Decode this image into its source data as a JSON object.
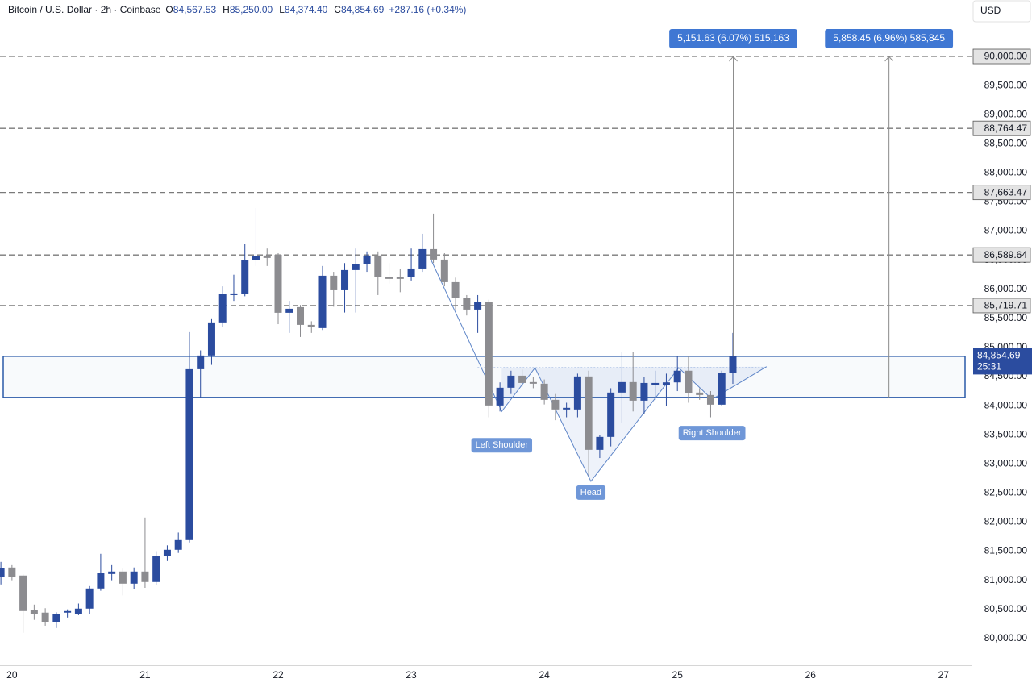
{
  "chart_data": {
    "type": "candlestick",
    "title": "Bitcoin / U.S. Dollar · 2h · Coinbase",
    "legend_ohlc": [
      {
        "key": "O",
        "label": "84,567.53"
      },
      {
        "key": "H",
        "label": "85,250.00"
      },
      {
        "key": "L",
        "label": "84,374.40"
      },
      {
        "key": "C",
        "label": "84,854.69"
      }
    ],
    "change": "+287.16 (+0.34%)",
    "currency": "USD",
    "up_color": "#2b4c9f",
    "down_color": "#8c8c90",
    "x": [
      19.9167,
      20,
      20.0833,
      20.1667,
      20.25,
      20.3333,
      20.4167,
      20.5,
      20.5833,
      20.6667,
      20.75,
      20.8333,
      20.9167,
      21,
      21.0833,
      21.1667,
      21.25,
      21.3333,
      21.4167,
      21.5,
      21.5833,
      21.6667,
      21.75,
      21.8333,
      21.9167,
      22,
      22.0833,
      22.1667,
      22.25,
      22.3333,
      22.4167,
      22.5,
      22.5833,
      22.6667,
      22.75,
      22.8333,
      22.9167,
      23,
      23.0833,
      23.1667,
      23.25,
      23.3333,
      23.4167,
      23.5,
      23.5833,
      23.6667,
      23.75,
      23.8333,
      23.9167,
      24,
      24.0833,
      24.1667,
      24.25,
      24.3333,
      24.4167,
      24.5,
      24.5833,
      24.6667,
      24.75,
      24.8333,
      24.9167,
      25,
      25.0833,
      25.1667,
      25.25,
      25.3333,
      25.4167
    ],
    "open": [
      81053,
      81219,
      81081,
      80485,
      80444,
      80277,
      80444,
      80416,
      80513,
      80859,
      81108,
      81150,
      80942,
      81150,
      80970,
      81413,
      81524,
      81690,
      84626,
      84862,
      85430,
      85900,
      85914,
      86496,
      86580,
      86593,
      85596,
      85693,
      85388,
      85333,
      86233,
      85983,
      86330,
      86427,
      86580,
      86205,
      86205,
      86205,
      86357,
      86690,
      86510,
      86122,
      85845,
      85651,
      85776,
      84003,
      84308,
      84515,
      84405,
      84377,
      84100,
      83934,
      83934,
      84502,
      83241,
      83463,
      84225,
      84405,
      84086,
      84350,
      84350,
      84400,
      84600,
      84225,
      84183,
      84017,
      84567.53
    ],
    "high": [
      81316,
      81260,
      81100,
      80582,
      80520,
      80450,
      80500,
      80600,
      80900,
      81455,
      81260,
      81200,
      81220,
      82078,
      81500,
      81600,
      81820,
      85263,
      84950,
      85500,
      86050,
      86250,
      86780,
      87396,
      86700,
      86620,
      85800,
      85730,
      85450,
      86400,
      86300,
      86450,
      86700,
      86650,
      86650,
      86450,
      86350,
      86700,
      86953,
      87300,
      86620,
      86200,
      85900,
      85900,
      85820,
      84400,
      84600,
      84620,
      84500,
      84450,
      84200,
      84050,
      84550,
      84600,
      83500,
      84300,
      84917,
      84917,
      84500,
      84600,
      84550,
      84850,
      84850,
      84300,
      84250,
      84600,
      85250
    ],
    "low": [
      80928,
      81000,
      80097,
      80320,
      80220,
      80180,
      80360,
      80400,
      80420,
      80820,
      81000,
      80740,
      80850,
      80870,
      80920,
      81330,
      81470,
      81650,
      84140,
      84700,
      85350,
      85800,
      85880,
      86400,
      86400,
      85400,
      85250,
      85180,
      85250,
      85300,
      85700,
      85600,
      85600,
      86300,
      85900,
      86100,
      85950,
      86150,
      86300,
      86450,
      86050,
      85650,
      85550,
      85250,
      83800,
      83900,
      84200,
      84330,
      84300,
      84020,
      83750,
      83800,
      83800,
      82800,
      83100,
      83300,
      83700,
      83900,
      83850,
      84100,
      84000,
      84250,
      84050,
      84100,
      83800,
      84000,
      84374.4
    ],
    "close": [
      81205,
      81053,
      80471,
      80416,
      80277,
      80416,
      80471,
      80513,
      80859,
      81122,
      81150,
      80942,
      81150,
      80970,
      81413,
      81524,
      81690,
      84626,
      84862,
      85430,
      85914,
      85928,
      86496,
      86565,
      86538,
      85596,
      85665,
      85388,
      85346,
      86233,
      85983,
      86330,
      86427,
      86580,
      86205,
      86178,
      86178,
      86357,
      86690,
      86510,
      86122,
      85845,
      85651,
      85776,
      84003,
      84308,
      84515,
      84390,
      84377,
      84100,
      83934,
      83962,
      84502,
      83241,
      83463,
      84225,
      84405,
      84086,
      84390,
      84390,
      84400,
      84600,
      84210,
      84183,
      84017,
      84557,
      84854.69
    ],
    "xlim": [
      19.91,
      27.21
    ],
    "xticks": [
      20,
      21,
      22,
      23,
      24,
      25,
      26,
      27
    ],
    "ylim": [
      79540,
      90970
    ],
    "yticks": [
      {
        "value": 80000,
        "label": "80,000.00"
      },
      {
        "value": 80500,
        "label": "80,500.00"
      },
      {
        "value": 81000,
        "label": "81,000.00"
      },
      {
        "value": 81500,
        "label": "81,500.00"
      },
      {
        "value": 82000,
        "label": "82,000.00"
      },
      {
        "value": 82500,
        "label": "82,500.00"
      },
      {
        "value": 83000,
        "label": "83,000.00"
      },
      {
        "value": 83500,
        "label": "83,500.00"
      },
      {
        "value": 84000,
        "label": "84,000.00"
      },
      {
        "value": 84500,
        "label": "84,500.00"
      },
      {
        "value": 85000,
        "label": "85,000.00"
      },
      {
        "value": 85500,
        "label": "85,500.00"
      },
      {
        "value": 86000,
        "label": "86,000.00"
      },
      {
        "value": 86500,
        "label": "86,500.00"
      },
      {
        "value": 87000,
        "label": "87,000.00"
      },
      {
        "value": 87500,
        "label": "87,500.00"
      },
      {
        "value": 88000,
        "label": "88,000.00"
      },
      {
        "value": 88500,
        "label": "88,500.00"
      },
      {
        "value": 89000,
        "label": "89,000.00"
      },
      {
        "value": 89500,
        "label": "89,500.00"
      }
    ],
    "levels": [
      {
        "value": 90000,
        "label": "90,000.00"
      },
      {
        "value": 88764.47,
        "label": "88,764.47"
      },
      {
        "value": 87663.47,
        "label": "87,663.47"
      },
      {
        "value": 86589.64,
        "label": "86,589.64"
      },
      {
        "value": 85719.71,
        "label": "85,719.71"
      }
    ],
    "zone": [
      84141.55,
      84848.37
    ],
    "pattern": {
      "x": [
        23.15,
        23.68,
        23.93,
        24.35,
        25.01,
        25.26,
        25.67
      ],
      "y": [
        86500,
        83900,
        84650,
        82700,
        84650,
        84110,
        84670
      ],
      "labels": [
        null,
        "Left Shoulder",
        null,
        "Head",
        null,
        "Right Shoulder",
        null
      ]
    },
    "measures": [
      {
        "x": 25.42,
        "from": 84848.37,
        "to": 90000,
        "label": "5,151.63 (6.07%) 515,163"
      },
      {
        "x": 26.59,
        "from": 84141.55,
        "to": 90000,
        "label": "5,858.45 (6.96%) 585,845"
      }
    ],
    "price_tag": {
      "value": 84854.69,
      "label": "84,854.69",
      "countdown": "25:31"
    }
  }
}
